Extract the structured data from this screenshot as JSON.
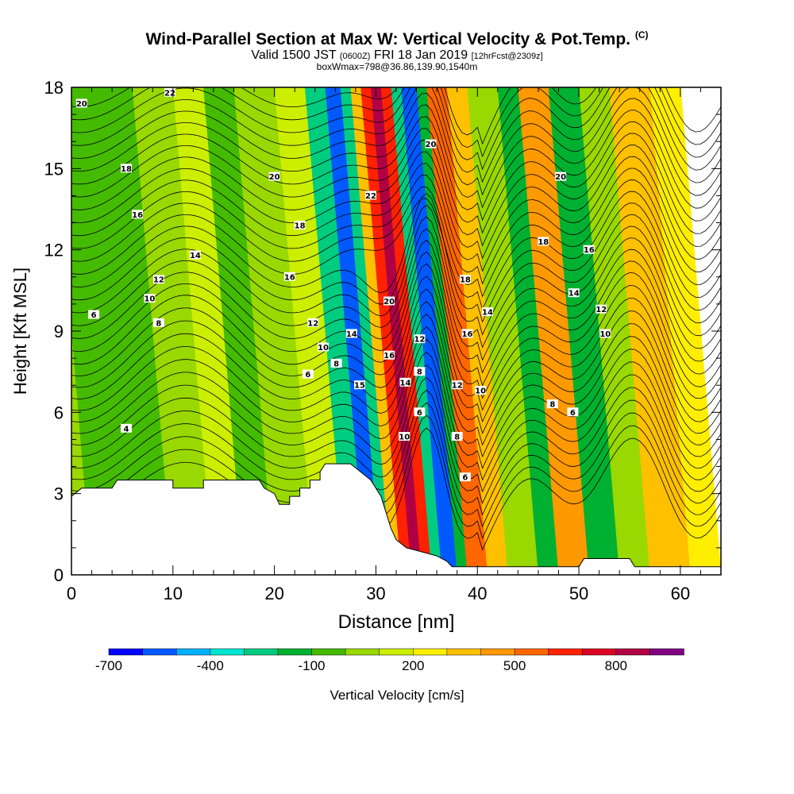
{
  "title": {
    "main": "Wind-Parallel Section at Max W: Vertical Velocity & Pot.Temp.",
    "copyright": "(C)",
    "valid_a": "Valid 1500 JST",
    "valid_b": "(0600Z)",
    "valid_c": "FRI 18 Jan 2019",
    "valid_d": "[12hrFcst@2309z]",
    "boxinfo": "boxWmax=798@36.86,139.90,1540m"
  },
  "chart_data": {
    "type": "heatmap",
    "xlabel": "Distance [nm]",
    "ylabel": "Height [Kft MSL]",
    "xlim": [
      0,
      64
    ],
    "ylim": [
      0,
      18
    ],
    "x_ticks": [
      0,
      10,
      20,
      30,
      40,
      50,
      60
    ],
    "y_ticks": [
      0,
      3,
      6,
      9,
      12,
      15,
      18
    ],
    "colorbar": {
      "label": "Vertical Velocity [cm/s]",
      "tick_labels": [
        "-700",
        "-400",
        "-100",
        "200",
        "500",
        "800"
      ],
      "tick_values": [
        -700,
        -400,
        -100,
        200,
        500,
        800
      ],
      "colors": [
        "#0000ff",
        "#0059ff",
        "#00b0ff",
        "#00e5d0",
        "#00cc80",
        "#00b030",
        "#44bb00",
        "#99d800",
        "#ccee00",
        "#ffee00",
        "#ffc000",
        "#ff9900",
        "#ff6600",
        "#ff2200",
        "#dd0022",
        "#b00044",
        "#800080"
      ]
    },
    "velocity_bands": [
      {
        "x": 0,
        "w": 2,
        "value": -100
      },
      {
        "x": 2,
        "w": 4,
        "value": -150
      },
      {
        "x": 6,
        "w": 4,
        "value": -200
      },
      {
        "x": 10,
        "w": 4,
        "value": -100
      },
      {
        "x": 14,
        "w": 3,
        "value": 50
      },
      {
        "x": 17,
        "w": 3,
        "value": -150
      },
      {
        "x": 20,
        "w": 4,
        "value": -50
      },
      {
        "x": 24,
        "w": 3,
        "value": 50
      },
      {
        "x": 27,
        "w": 2,
        "value": -400
      },
      {
        "x": 29,
        "w": 1.5,
        "value": -650
      },
      {
        "x": 30.5,
        "w": 1,
        "value": -400
      },
      {
        "x": 31.5,
        "w": 1,
        "value": 200
      },
      {
        "x": 32.5,
        "w": 1,
        "value": 500
      },
      {
        "x": 33.5,
        "w": 1,
        "value": 798
      },
      {
        "x": 34.5,
        "w": 1,
        "value": 500
      },
      {
        "x": 35.5,
        "w": 1,
        "value": -400
      },
      {
        "x": 36.5,
        "w": 1.5,
        "value": -700
      },
      {
        "x": 38,
        "w": 1,
        "value": -300
      },
      {
        "x": 39,
        "w": 2,
        "value": 400
      },
      {
        "x": 41,
        "w": 2,
        "value": 250
      },
      {
        "x": 43,
        "w": 3,
        "value": -100
      },
      {
        "x": 46,
        "w": 2,
        "value": -250
      },
      {
        "x": 48,
        "w": 3,
        "value": 300
      },
      {
        "x": 51,
        "w": 3,
        "value": -250
      },
      {
        "x": 54,
        "w": 3,
        "value": -100
      },
      {
        "x": 57,
        "w": 4,
        "value": 250
      },
      {
        "x": 61,
        "w": 3,
        "value": 100
      }
    ],
    "terrain": [
      [
        0,
        2.9
      ],
      [
        1,
        3.2
      ],
      [
        4,
        3.2
      ],
      [
        4.5,
        3.5
      ],
      [
        10,
        3.5
      ],
      [
        10,
        3.2
      ],
      [
        13,
        3.2
      ],
      [
        13,
        3.5
      ],
      [
        18.5,
        3.5
      ],
      [
        19,
        3.2
      ],
      [
        20,
        3.0
      ],
      [
        20.5,
        2.6
      ],
      [
        21.5,
        2.6
      ],
      [
        21.5,
        2.9
      ],
      [
        22.5,
        2.9
      ],
      [
        22.5,
        3.2
      ],
      [
        23.5,
        3.2
      ],
      [
        23.5,
        3.5
      ],
      [
        24.5,
        3.5
      ],
      [
        24.5,
        3.8
      ],
      [
        25,
        4.1
      ],
      [
        27.5,
        4.1
      ],
      [
        28.5,
        3.8
      ],
      [
        29.5,
        3.5
      ],
      [
        30,
        3.2
      ],
      [
        30.5,
        2.9
      ],
      [
        31,
        2.3
      ],
      [
        31.5,
        1.7
      ],
      [
        32,
        1.3
      ],
      [
        33,
        1.0
      ],
      [
        34,
        0.9
      ],
      [
        36,
        0.7
      ],
      [
        37,
        0.5
      ],
      [
        37.5,
        0.3
      ],
      [
        50,
        0.3
      ],
      [
        50.5,
        0.6
      ],
      [
        55,
        0.6
      ],
      [
        55.5,
        0.3
      ],
      [
        64,
        0.3
      ]
    ],
    "isentrope_labels": [
      {
        "x": 1,
        "y": 17.4,
        "text": "20"
      },
      {
        "x": 9.7,
        "y": 17.8,
        "text": "22"
      },
      {
        "x": 5.4,
        "y": 15.0,
        "text": "18"
      },
      {
        "x": 6.5,
        "y": 13.3,
        "text": "16"
      },
      {
        "x": 12.2,
        "y": 11.8,
        "text": "14"
      },
      {
        "x": 8.6,
        "y": 10.9,
        "text": "12"
      },
      {
        "x": 7.7,
        "y": 10.2,
        "text": "10"
      },
      {
        "x": 2.2,
        "y": 9.6,
        "text": "6"
      },
      {
        "x": 8.6,
        "y": 9.3,
        "text": "8"
      },
      {
        "x": 5.4,
        "y": 5.4,
        "text": "4"
      },
      {
        "x": 20,
        "y": 14.7,
        "text": "20"
      },
      {
        "x": 22.5,
        "y": 12.9,
        "text": "18"
      },
      {
        "x": 21.5,
        "y": 11.0,
        "text": "16"
      },
      {
        "x": 23.8,
        "y": 9.3,
        "text": "12"
      },
      {
        "x": 24.8,
        "y": 8.4,
        "text": "10"
      },
      {
        "x": 23.3,
        "y": 7.4,
        "text": "6"
      },
      {
        "x": 26.1,
        "y": 7.8,
        "text": "8"
      },
      {
        "x": 27.6,
        "y": 8.9,
        "text": "14"
      },
      {
        "x": 28.4,
        "y": 7.0,
        "text": "15"
      },
      {
        "x": 29.5,
        "y": 14.0,
        "text": "22"
      },
      {
        "x": 31.3,
        "y": 10.1,
        "text": "20"
      },
      {
        "x": 31.3,
        "y": 8.1,
        "text": "16"
      },
      {
        "x": 32.9,
        "y": 7.1,
        "text": "14"
      },
      {
        "x": 34.3,
        "y": 8.7,
        "text": "12"
      },
      {
        "x": 34.3,
        "y": 7.5,
        "text": "8"
      },
      {
        "x": 34.3,
        "y": 6.0,
        "text": "6"
      },
      {
        "x": 32.8,
        "y": 5.1,
        "text": "10"
      },
      {
        "x": 35.4,
        "y": 15.9,
        "text": "20"
      },
      {
        "x": 38.8,
        "y": 10.9,
        "text": "18"
      },
      {
        "x": 39.0,
        "y": 8.9,
        "text": "16"
      },
      {
        "x": 38.0,
        "y": 7.0,
        "text": "12"
      },
      {
        "x": 38.0,
        "y": 5.1,
        "text": "8"
      },
      {
        "x": 38.8,
        "y": 3.6,
        "text": "6"
      },
      {
        "x": 41.0,
        "y": 9.7,
        "text": "14"
      },
      {
        "x": 40.3,
        "y": 6.8,
        "text": "10"
      },
      {
        "x": 48.2,
        "y": 14.7,
        "text": "20"
      },
      {
        "x": 46.5,
        "y": 12.3,
        "text": "18"
      },
      {
        "x": 51.0,
        "y": 12.0,
        "text": "16"
      },
      {
        "x": 49.5,
        "y": 10.4,
        "text": "14"
      },
      {
        "x": 52.2,
        "y": 9.8,
        "text": "12"
      },
      {
        "x": 52.6,
        "y": 8.9,
        "text": "10"
      },
      {
        "x": 47.4,
        "y": 6.3,
        "text": "8"
      },
      {
        "x": 49.4,
        "y": 6.0,
        "text": "6"
      }
    ]
  }
}
